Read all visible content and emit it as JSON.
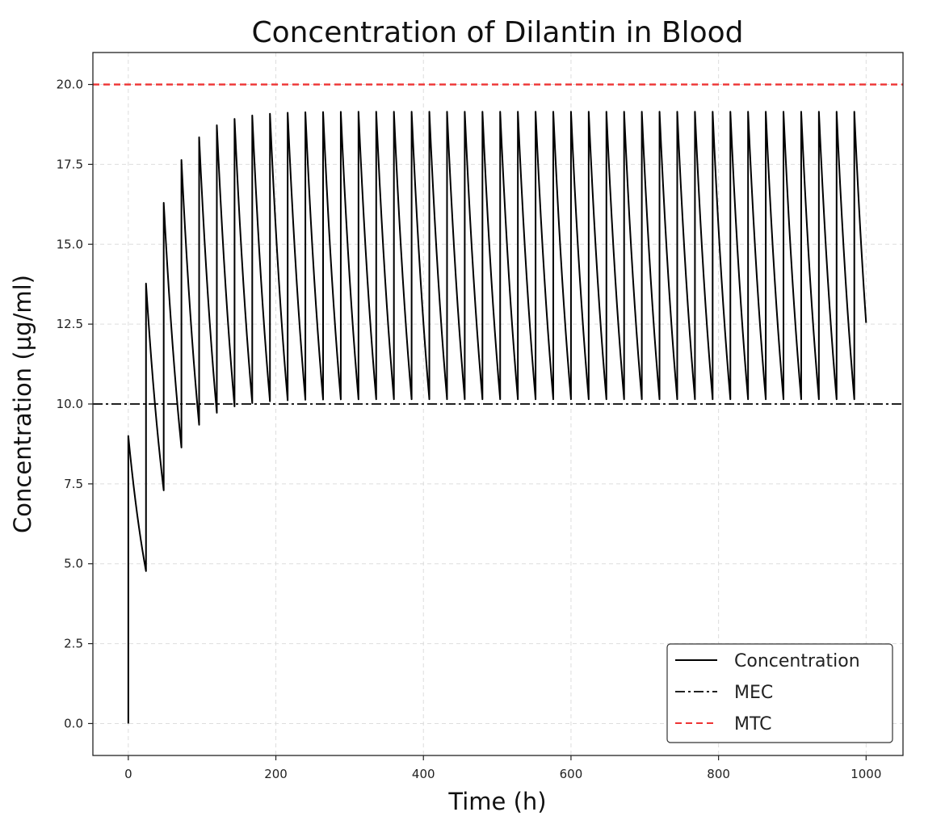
{
  "chart_data": {
    "type": "line",
    "title": "Concentration of Dilantin in Blood",
    "xlabel": "Time (h)",
    "ylabel": "Concentration (µg/ml)",
    "xlim": [
      -48,
      1050
    ],
    "ylim": [
      -1.0,
      21.0
    ],
    "xticks": [
      0,
      200,
      400,
      600,
      800,
      1000
    ],
    "xtick_labels": [
      "0",
      "200",
      "400",
      "600",
      "800",
      "1000"
    ],
    "yticks": [
      0,
      2.5,
      5,
      7.5,
      10,
      12.5,
      15,
      17.5,
      20
    ],
    "ytick_labels": [
      "0.0",
      "2.5",
      "5.0",
      "7.5",
      "10.0",
      "12.5",
      "15.0",
      "17.5",
      "20.0"
    ],
    "grid": true,
    "legend_position": "lower-right",
    "dose_model": {
      "dose_interval_h": 24,
      "dose_increment": 9.0,
      "elimination_fraction_per_interval": 0.47,
      "last_dose_h": 984,
      "end_h": 1000
    },
    "series": [
      {
        "name": "Concentration",
        "color": "#000000",
        "style": "solid"
      },
      {
        "name": "MEC",
        "color": "#222222",
        "style": "dashdot",
        "y": 10.0
      },
      {
        "name": "MTC",
        "color": "#ee3333",
        "style": "dashed",
        "y": 20.0
      }
    ]
  }
}
